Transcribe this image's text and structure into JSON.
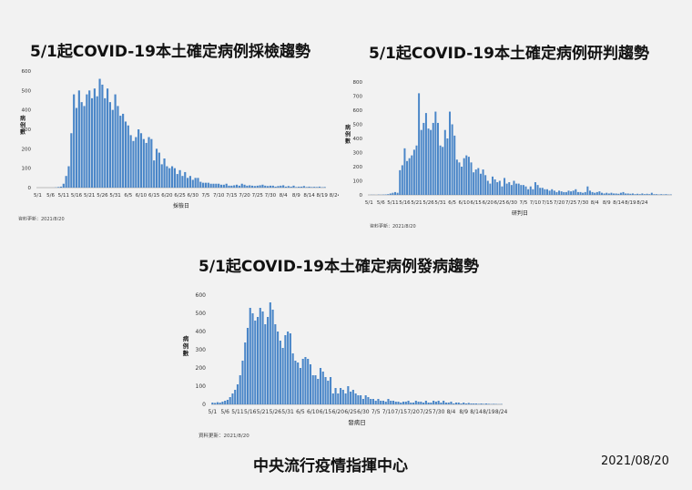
{
  "footer": {
    "org": "中央流行疫情指揮中心",
    "date": "2021/08/20"
  },
  "chart_data": [
    {
      "id": "testing",
      "type": "bar",
      "title": "5/1起COVID-19本土確定病例採檢趨勢",
      "xlabel": "採檢日",
      "ylabel": "病例數",
      "note": "資料更新：2021/8/20",
      "ylim": [
        0,
        600
      ],
      "yticks": [
        0,
        100,
        200,
        300,
        400,
        500,
        600
      ],
      "xtick_labels": [
        "5/1",
        "5/6",
        "5/11",
        "5/16",
        "5/21",
        "5/26",
        "5/31",
        "6/5",
        "6/10",
        "6/15",
        "6/20",
        "6/25",
        "6/30",
        "7/5",
        "7/10",
        "7/15",
        "7/20",
        "7/25",
        "7/30",
        "8/4",
        "8/9",
        "8/14",
        "8/19",
        "8/24"
      ],
      "start": "2021-05-01",
      "values": [
        0,
        0,
        0,
        0,
        0,
        0,
        0,
        1,
        3,
        5,
        20,
        60,
        110,
        280,
        480,
        410,
        500,
        440,
        420,
        480,
        500,
        460,
        510,
        470,
        560,
        530,
        460,
        510,
        440,
        400,
        480,
        420,
        370,
        380,
        340,
        320,
        270,
        240,
        260,
        300,
        280,
        250,
        230,
        260,
        250,
        140,
        200,
        180,
        120,
        150,
        110,
        100,
        110,
        100,
        70,
        90,
        60,
        80,
        50,
        60,
        40,
        50,
        50,
        30,
        25,
        25,
        25,
        20,
        20,
        20,
        20,
        15,
        15,
        20,
        10,
        10,
        12,
        15,
        10,
        20,
        15,
        10,
        12,
        10,
        8,
        10,
        12,
        15,
        10,
        8,
        10,
        10,
        5,
        8,
        10,
        12,
        5,
        8,
        5,
        10,
        3,
        5,
        5,
        8,
        3,
        5,
        3,
        4,
        3,
        5,
        2,
        3
      ]
    },
    {
      "id": "confirm",
      "type": "bar",
      "title": "5/1起COVID-19本土確定病例研判趨勢",
      "xlabel": "研判日",
      "ylabel": "病例數",
      "note": "資料更新：2021/8/20",
      "ylim": [
        0,
        800
      ],
      "yticks": [
        0,
        100,
        200,
        300,
        400,
        500,
        600,
        700,
        800
      ],
      "xtick_labels": [
        "5/1",
        "5/6",
        "5/11",
        "5/16",
        "5/21",
        "5/26",
        "5/31",
        "6/5",
        "6/10",
        "6/15",
        "6/20",
        "6/25",
        "6/30",
        "7/5",
        "7/10",
        "7/15",
        "7/20",
        "7/25",
        "7/30",
        "8/4",
        "8/9",
        "8/14",
        "8/19",
        "8/24"
      ],
      "start": "2021-05-01",
      "values": [
        0,
        1,
        1,
        0,
        2,
        1,
        2,
        3,
        5,
        10,
        15,
        20,
        15,
        175,
        210,
        330,
        240,
        260,
        280,
        320,
        350,
        720,
        460,
        510,
        580,
        470,
        460,
        510,
        590,
        510,
        350,
        340,
        460,
        400,
        590,
        500,
        420,
        250,
        230,
        200,
        260,
        280,
        270,
        230,
        160,
        180,
        190,
        150,
        180,
        140,
        100,
        80,
        130,
        110,
        90,
        100,
        60,
        120,
        80,
        90,
        70,
        100,
        80,
        80,
        70,
        70,
        60,
        40,
        60,
        40,
        90,
        70,
        50,
        50,
        40,
        40,
        30,
        40,
        30,
        20,
        30,
        25,
        20,
        20,
        30,
        25,
        30,
        40,
        20,
        20,
        15,
        20,
        60,
        30,
        20,
        15,
        20,
        25,
        15,
        10,
        15,
        10,
        15,
        10,
        10,
        8,
        15,
        20,
        10,
        10,
        8,
        10,
        5,
        8,
        5,
        10,
        5,
        8,
        5,
        15,
        5,
        5,
        3,
        5,
        3,
        5,
        2,
        3
      ]
    },
    {
      "id": "onset",
      "type": "bar",
      "title": "5/1起COVID-19本土確定病例發病趨勢",
      "xlabel": "發病日",
      "ylabel": "病例數",
      "note": "資料更新：2021/8/20",
      "ylim": [
        0,
        600
      ],
      "yticks": [
        0,
        100,
        200,
        300,
        400,
        500,
        600
      ],
      "xtick_labels": [
        "5/1",
        "5/6",
        "5/11",
        "5/16",
        "5/21",
        "5/26",
        "5/31",
        "6/5",
        "6/10",
        "6/15",
        "6/20",
        "6/25",
        "6/30",
        "7/5",
        "7/10",
        "7/15",
        "7/20",
        "7/25",
        "7/30",
        "8/4",
        "8/9",
        "8/14",
        "8/19",
        "8/24"
      ],
      "start": "2021-05-01",
      "values": [
        10,
        8,
        12,
        10,
        15,
        20,
        25,
        40,
        60,
        80,
        110,
        160,
        240,
        340,
        420,
        530,
        500,
        460,
        480,
        530,
        510,
        440,
        480,
        560,
        520,
        440,
        400,
        350,
        310,
        380,
        400,
        390,
        280,
        240,
        230,
        200,
        250,
        260,
        250,
        220,
        160,
        160,
        140,
        200,
        180,
        150,
        130,
        150,
        60,
        90,
        60,
        90,
        80,
        60,
        100,
        70,
        80,
        60,
        50,
        50,
        30,
        50,
        40,
        30,
        30,
        20,
        30,
        20,
        20,
        15,
        30,
        20,
        20,
        15,
        15,
        10,
        15,
        15,
        20,
        10,
        10,
        20,
        15,
        15,
        10,
        20,
        10,
        10,
        20,
        15,
        20,
        10,
        20,
        10,
        10,
        15,
        5,
        10,
        10,
        5,
        10,
        5,
        8,
        5,
        5,
        5,
        3,
        5,
        3,
        5,
        3,
        2,
        3,
        2,
        1,
        2
      ]
    }
  ]
}
